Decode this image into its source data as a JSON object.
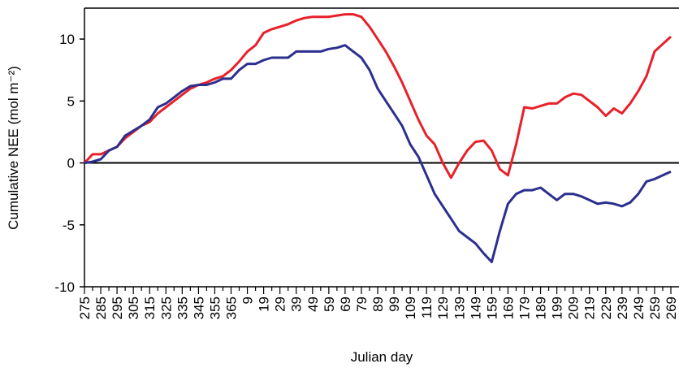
{
  "chart_data": {
    "type": "line",
    "xlabel": "Julian day",
    "ylabel": "Cumulative NEE (mol m⁻²)",
    "categories": [
      "275",
      null,
      "285",
      null,
      "295",
      null,
      "305",
      null,
      "315",
      null,
      "325",
      null,
      "335",
      null,
      "345",
      null,
      "355",
      null,
      "365",
      null,
      "9",
      null,
      "19",
      null,
      "29",
      null,
      "39",
      null,
      "49",
      null,
      "59",
      null,
      "69",
      null,
      "79",
      null,
      "89",
      null,
      "99",
      null,
      "109",
      null,
      "119",
      null,
      "129",
      null,
      "139",
      null,
      "149",
      null,
      "159",
      null,
      "169",
      null,
      "179",
      null,
      "189",
      null,
      "199",
      null,
      "209",
      null,
      "219",
      null,
      "229",
      null,
      "239",
      null,
      "249",
      null,
      "259",
      null,
      "269"
    ],
    "series": [
      {
        "color": "#e8202a",
        "values": [
          0,
          0.7,
          0.7,
          1.0,
          1.3,
          2.0,
          2.5,
          3.0,
          3.3,
          4.0,
          4.5,
          5.0,
          5.5,
          6.0,
          6.3,
          6.5,
          6.8,
          7.0,
          7.5,
          8.2,
          9.0,
          9.5,
          10.5,
          10.8,
          11.0,
          11.2,
          11.5,
          11.7,
          11.8,
          11.8,
          11.8,
          11.9,
          12.0,
          12.0,
          11.8,
          11.0,
          10.0,
          9.0,
          7.8,
          6.5,
          5.0,
          3.5,
          2.2,
          1.5,
          0.0,
          -1.2,
          0.0,
          1.0,
          1.7,
          1.8,
          1.0,
          -0.5,
          -1.0,
          1.5,
          4.5,
          4.4,
          4.6,
          4.8,
          4.8,
          5.3,
          5.6,
          5.5,
          5.0,
          4.5,
          3.8,
          4.4,
          4.0,
          4.8,
          5.8,
          7.0,
          9.0,
          9.6,
          10.2
        ]
      },
      {
        "color": "#2b2f8e",
        "values": [
          0,
          0.1,
          0.3,
          1.0,
          1.3,
          2.2,
          2.6,
          3.0,
          3.5,
          4.5,
          4.8,
          5.3,
          5.8,
          6.2,
          6.3,
          6.3,
          6.5,
          6.8,
          6.8,
          7.5,
          8.0,
          8.0,
          8.3,
          8.5,
          8.5,
          8.5,
          9.0,
          9.0,
          9.0,
          9.0,
          9.2,
          9.3,
          9.5,
          9.0,
          8.5,
          7.5,
          6.0,
          5.0,
          4.0,
          3.0,
          1.5,
          0.5,
          -1.0,
          -2.5,
          -3.5,
          -4.5,
          -5.5,
          -6.0,
          -6.5,
          -7.3,
          -8.0,
          -5.5,
          -3.3,
          -2.5,
          -2.2,
          -2.2,
          -2.0,
          -2.5,
          -3.0,
          -2.5,
          -2.5,
          -2.7,
          -3.0,
          -3.3,
          -3.2,
          -3.3,
          -3.5,
          -3.2,
          -2.5,
          -1.5,
          -1.3,
          -1.0,
          -0.7
        ]
      }
    ],
    "ylim": [
      -10,
      12.5
    ],
    "yticks": [
      -10,
      -5,
      0,
      5,
      10
    ],
    "zero_line": true
  }
}
